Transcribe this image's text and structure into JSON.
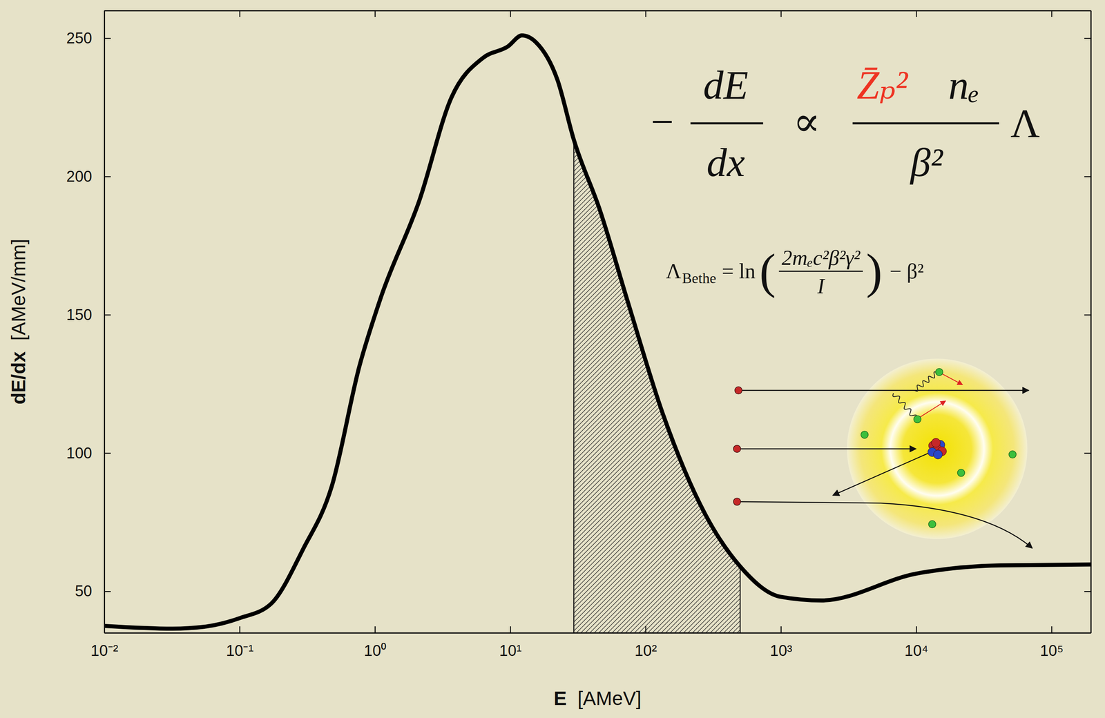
{
  "chart_data": {
    "type": "line",
    "xlabel": "E  [AMeV]",
    "ylabel": "dE/dx  [AMeV/mm]",
    "log": "x",
    "x": [
      0.01,
      0.032,
      0.055,
      0.1,
      0.17,
      0.295,
      0.48,
      0.77,
      1.1,
      2.14,
      3.68,
      6.3,
      9.6,
      12.2,
      15.5,
      22.3,
      29.5,
      46,
      74,
      135,
      275,
      500,
      1000,
      2000,
      10000,
      42000,
      195000
    ],
    "values": [
      37.5,
      36.5,
      37.2,
      40.3,
      45.4,
      65.3,
      88,
      131.6,
      155.9,
      191.6,
      228.6,
      242.9,
      247,
      251,
      248.5,
      235,
      213.3,
      187.8,
      154.6,
      113.8,
      78,
      59,
      48,
      46.7,
      56.4,
      59.4,
      59.7
    ],
    "color": "#000000",
    "xlim": [
      0.01,
      195000
    ],
    "ylim": [
      35,
      260
    ],
    "xticks": [
      {
        "value": 0.01,
        "label": "10⁻²"
      },
      {
        "value": 0.1,
        "label": "10⁻¹"
      },
      {
        "value": 1,
        "label": "10⁰"
      },
      {
        "value": 10,
        "label": "10¹"
      },
      {
        "value": 100,
        "label": "10²"
      },
      {
        "value": 1000,
        "label": "10³"
      },
      {
        "value": 10000,
        "label": "10⁴"
      },
      {
        "value": 100000,
        "label": "10⁵"
      }
    ],
    "yticks": [
      50,
      100,
      150,
      200,
      250
    ],
    "highlight_range": [
      29.5,
      500
    ],
    "annotations": [
      {
        "sign": "−",
        "numerator": "dE",
        "denominator": "dx",
        "relation": "∝",
        "charge": "Z̄ₚ²",
        "density": "nₑ",
        "velocity": "β²",
        "factor": "Λ"
      },
      {
        "symbol": "Λ",
        "subscript": "Bethe",
        "equals": "= ln",
        "open": "(",
        "numerator": "2mₑc²β²γ²",
        "denominator": "I",
        "close": ")",
        "tail": "− β²"
      }
    ]
  }
}
